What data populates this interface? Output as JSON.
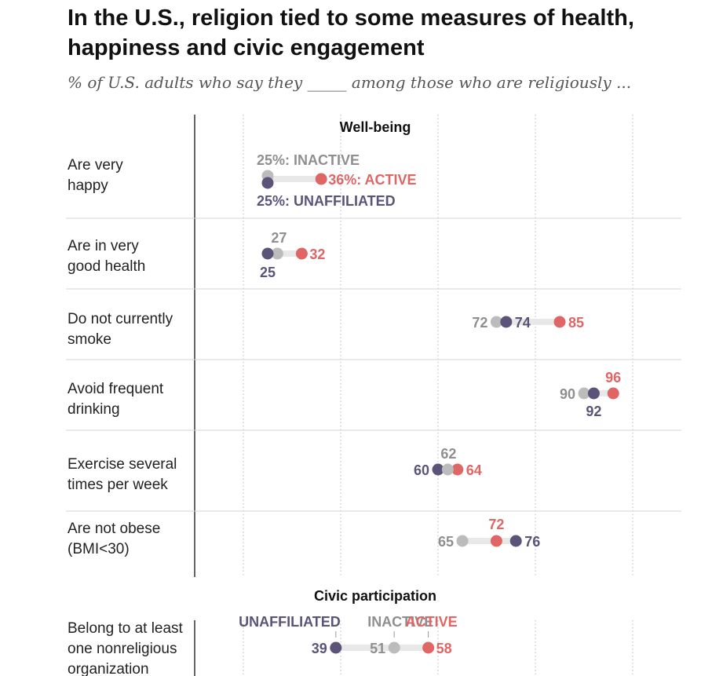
{
  "title": "In the U.S., religion tied to some measures of health, happiness and civic engagement",
  "subtitle": "% of U.S. adults who say they _____ among those who are religiously ...",
  "colors": {
    "active": "#e06565",
    "inactive": "#bcbcbc",
    "unaffiliated": "#5b5478",
    "inactive_text": "#8f8f8f",
    "connector": "#e8e8e8",
    "grid": "#b8b8b8",
    "divider": "#d6d6d6",
    "axis": "#333333"
  },
  "chart_data": {
    "type": "dot",
    "xlim": [
      10,
      100
    ],
    "gridlines": [
      20,
      40,
      60,
      80,
      100
    ],
    "series": [
      {
        "key": "unaffiliated",
        "name": "UNAFFILIATED"
      },
      {
        "key": "inactive",
        "name": "INACTIVE"
      },
      {
        "key": "active",
        "name": "ACTIVE"
      }
    ],
    "sections": [
      {
        "title": "Well-being",
        "rows": [
          {
            "label": [
              "Are very",
              "happy"
            ],
            "unaffiliated": 25,
            "inactive": 25,
            "active": 36,
            "value_labels": {
              "inactive": "25%: INACTIVE",
              "active": "36%: ACTIVE",
              "unaffiliated": "25%: UNAFFILIATED"
            }
          },
          {
            "label": [
              "Are in very",
              "good health"
            ],
            "unaffiliated": 25,
            "inactive": 27,
            "active": 32,
            "value_labels": {
              "inactive": "27",
              "active": "32",
              "unaffiliated": "25"
            }
          },
          {
            "label": [
              "Do not currently",
              "smoke"
            ],
            "unaffiliated": 74,
            "inactive": 72,
            "active": 85,
            "value_labels": {
              "inactive": "72",
              "active": "85",
              "unaffiliated": "74"
            }
          },
          {
            "label": [
              "Avoid frequent",
              "drinking"
            ],
            "unaffiliated": 92,
            "inactive": 90,
            "active": 96,
            "value_labels": {
              "inactive": "90",
              "active": "96",
              "unaffiliated": "92"
            }
          },
          {
            "label": [
              "Exercise several",
              "times per week"
            ],
            "unaffiliated": 60,
            "inactive": 62,
            "active": 64,
            "value_labels": {
              "inactive": "62",
              "active": "64",
              "unaffiliated": "60"
            }
          },
          {
            "label": [
              "Are not obese",
              "(BMI<30)"
            ],
            "unaffiliated": 76,
            "inactive": 65,
            "active": 72,
            "value_labels": {
              "inactive": "65",
              "active": "72",
              "unaffiliated": "76"
            }
          }
        ]
      },
      {
        "title": "Civic participation",
        "legend": [
          "UNAFFILIATED",
          "INACTIVE",
          "ACTIVE"
        ],
        "rows": [
          {
            "label": [
              "Belong to at least",
              "one nonreligious",
              "organization"
            ],
            "unaffiliated": 39,
            "inactive": 51,
            "active": 58,
            "value_labels": {
              "inactive": "51",
              "active": "58",
              "unaffiliated": "39"
            }
          }
        ]
      }
    ]
  }
}
